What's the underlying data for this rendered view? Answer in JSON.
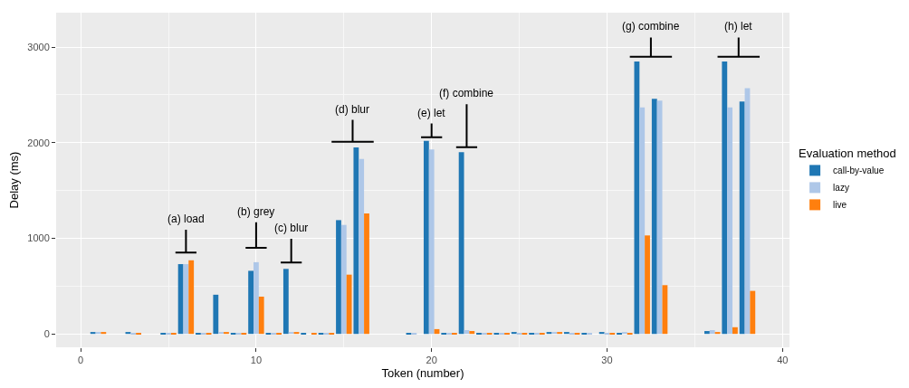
{
  "chart_data": {
    "type": "bar",
    "xlabel": "Token (number)",
    "ylabel": "Delay (ms)",
    "legend_title": "Evaluation method",
    "x": [
      1,
      2,
      3,
      4,
      5,
      6,
      7,
      8,
      9,
      10,
      11,
      12,
      13,
      14,
      15,
      16,
      17,
      18,
      19,
      20,
      21,
      22,
      23,
      24,
      25,
      26,
      27,
      28,
      29,
      30,
      31,
      32,
      33,
      34,
      35,
      36,
      37,
      38
    ],
    "series": [
      {
        "name": "call-by-value",
        "color": "#1f77b4",
        "values": [
          20,
          null,
          20,
          null,
          10,
          730,
          10,
          410,
          10,
          660,
          10,
          680,
          10,
          10,
          1190,
          1950,
          null,
          null,
          10,
          2020,
          10,
          1900,
          10,
          10,
          20,
          10,
          20,
          20,
          10,
          20,
          10,
          2850,
          2460,
          null,
          null,
          30,
          2850,
          2430
        ]
      },
      {
        "name": "lazy",
        "color": "#aec7e8",
        "values": [
          20,
          null,
          10,
          null,
          10,
          730,
          10,
          20,
          10,
          750,
          10,
          20,
          null,
          10,
          1140,
          1830,
          null,
          null,
          10,
          1930,
          10,
          40,
          10,
          10,
          10,
          10,
          20,
          10,
          10,
          10,
          20,
          2370,
          2440,
          null,
          null,
          40,
          2370,
          2570
        ]
      },
      {
        "name": "live",
        "color": "#ff7f0e",
        "values": [
          20,
          null,
          10,
          null,
          10,
          770,
          10,
          20,
          10,
          390,
          10,
          20,
          10,
          10,
          620,
          1260,
          null,
          null,
          null,
          50,
          10,
          30,
          10,
          10,
          10,
          10,
          20,
          10,
          null,
          10,
          10,
          1030,
          510,
          null,
          null,
          20,
          70,
          450
        ]
      }
    ],
    "xlim": [
      -1.4,
      40.4
    ],
    "xticks": [
      0,
      10,
      20,
      30,
      40
    ],
    "ylim": [
      -140,
      3360
    ],
    "yticks": [
      0,
      1000,
      2000,
      3000
    ],
    "grid": true,
    "legend": "right",
    "annotations": [
      "(a) load",
      "(b) grey",
      "(c) blur",
      "(d) blur",
      "(e) let",
      "(f) combine",
      "(g) combine",
      "(h) let"
    ]
  }
}
